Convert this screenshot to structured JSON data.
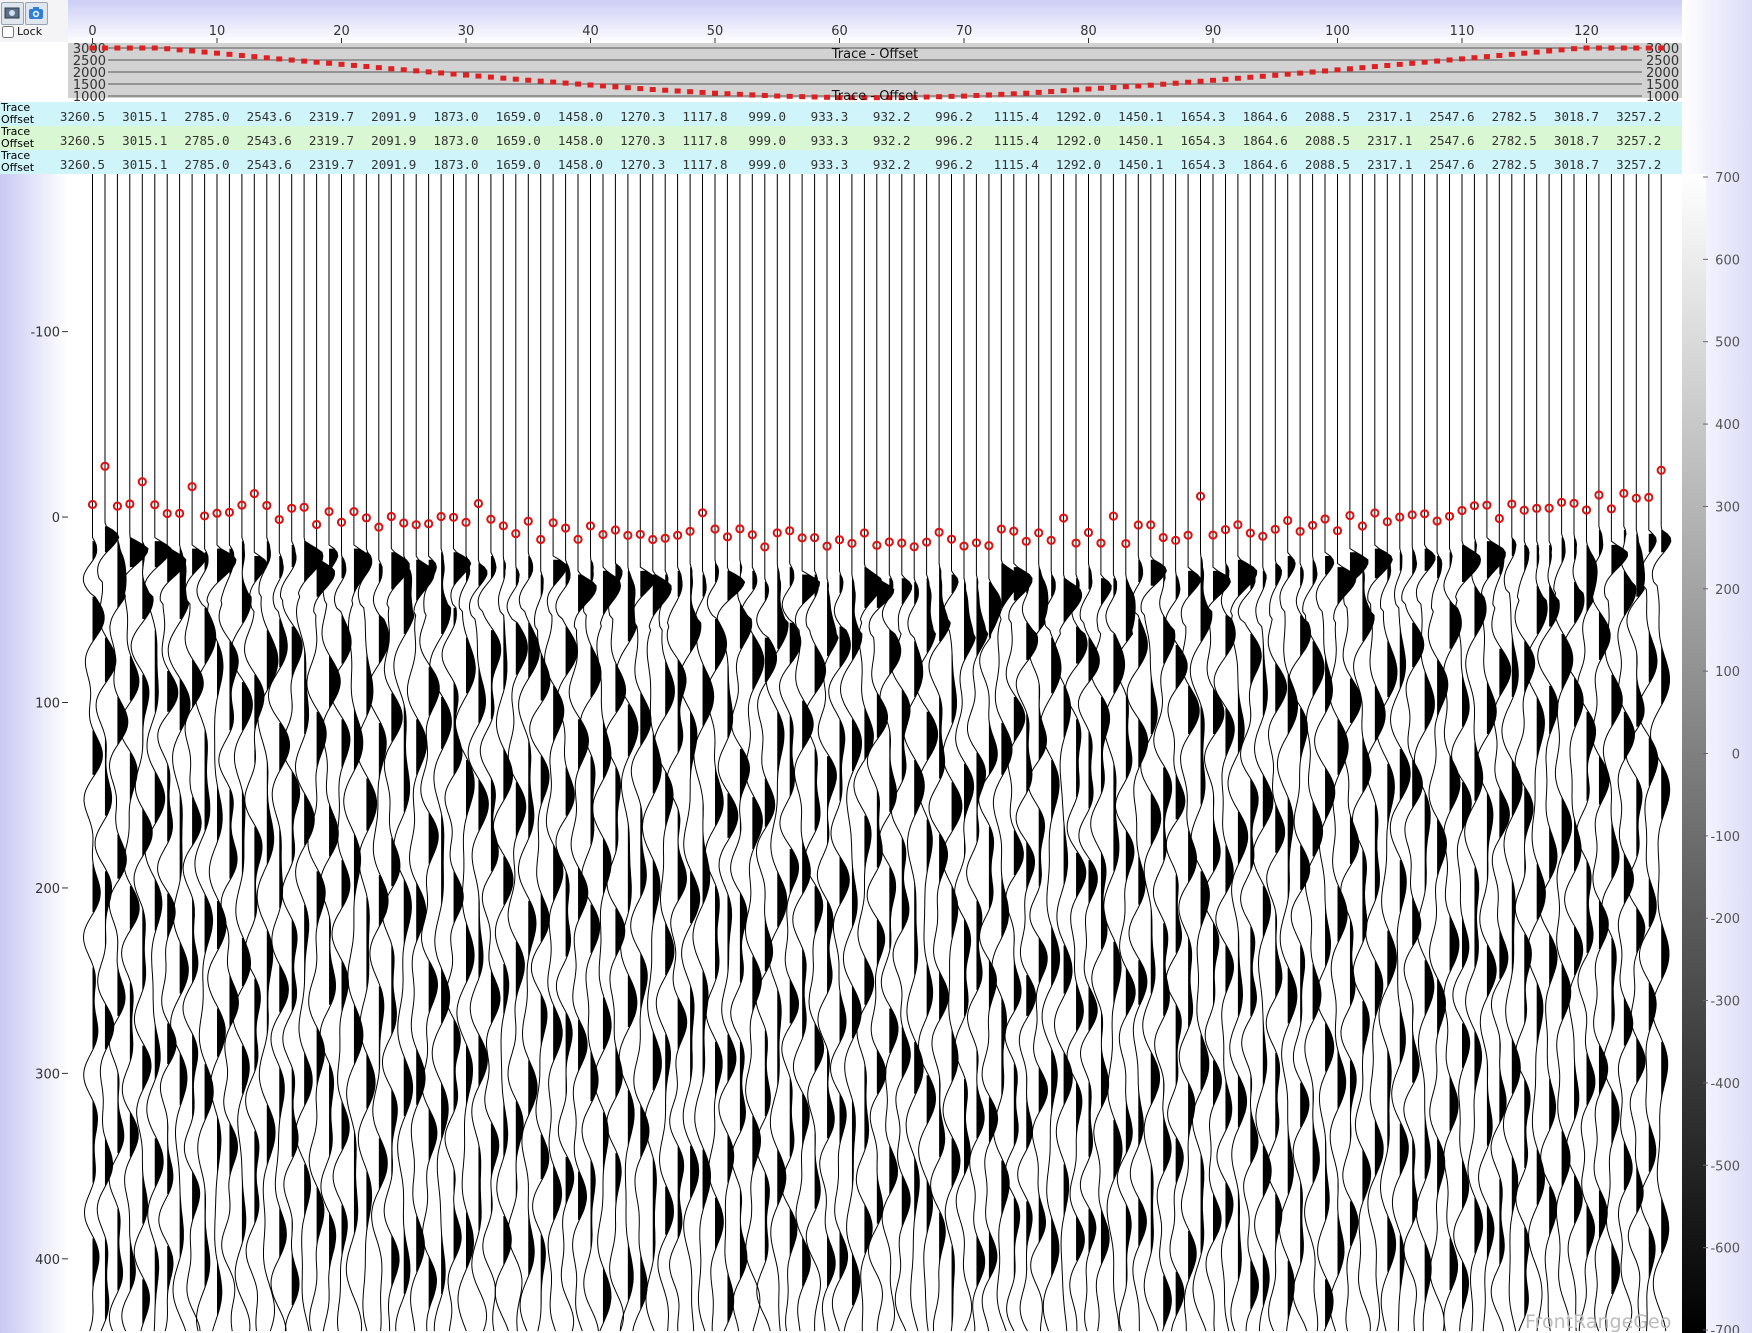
{
  "toolbar": {
    "lock_label": "Lock",
    "lock_checked": false,
    "buttons": [
      {
        "name": "image-export-button",
        "icon": "image-icon"
      },
      {
        "name": "snapshot-button",
        "icon": "camera-icon"
      }
    ]
  },
  "top_axis": {
    "ticks": [
      0,
      10,
      20,
      30,
      40,
      50,
      60,
      70,
      80,
      90,
      100,
      110,
      120
    ]
  },
  "offset_plot": {
    "title_top": "Trace - Offset",
    "title_bottom": "Trace - Offset",
    "y_ticks": [
      3000,
      2500,
      2000,
      1500,
      1000
    ],
    "marker_color": "#e02020"
  },
  "header_rows": [
    {
      "label_line1": "Trace",
      "label_line2": "Offset",
      "bg_color": "#cff4fa"
    },
    {
      "label_line1": "Trace",
      "label_line2": "Offset",
      "bg_color": "#d9f7d2"
    },
    {
      "label_line1": "Trace",
      "label_line2": "Offset",
      "bg_color": "#cff4fa"
    }
  ],
  "offset_values": [
    "3260.5",
    "3015.1",
    "2785.0",
    "2543.6",
    "2319.7",
    "2091.9",
    "1873.0",
    "1659.0",
    "1458.0",
    "1270.3",
    "1117.8",
    "999.0",
    "933.3",
    "932.2",
    "996.2",
    "1115.4",
    "1292.0",
    "1450.1",
    "1654.3",
    "1864.6",
    "2088.5",
    "2317.1",
    "2547.6",
    "2782.5",
    "3018.7",
    "3257.2"
  ],
  "trace_offsets_every5": [
    3260.5,
    3015.1,
    2785.0,
    2543.6,
    2319.7,
    2091.9,
    1873.0,
    1659.0,
    1458.0,
    1270.3,
    1117.8,
    999.0,
    933.3,
    932.2,
    996.2,
    1115.4,
    1292.0,
    1450.1,
    1654.3,
    1864.6,
    2088.5,
    2317.1,
    2547.6,
    2782.5,
    3018.7,
    3257.2
  ],
  "time_axis": {
    "ticks": [
      -100,
      0,
      100,
      200,
      300,
      400
    ],
    "range": [
      -185,
      440
    ]
  },
  "colorbar": {
    "ticks": [
      700,
      600,
      500,
      400,
      300,
      200,
      100,
      0,
      -100,
      -200,
      -300,
      -400,
      -500,
      -600,
      -700
    ]
  },
  "traces": {
    "count": 127,
    "fill_color": "#000000",
    "pick_color": "#e01010"
  },
  "watermark": "FrontRangeGeo"
}
